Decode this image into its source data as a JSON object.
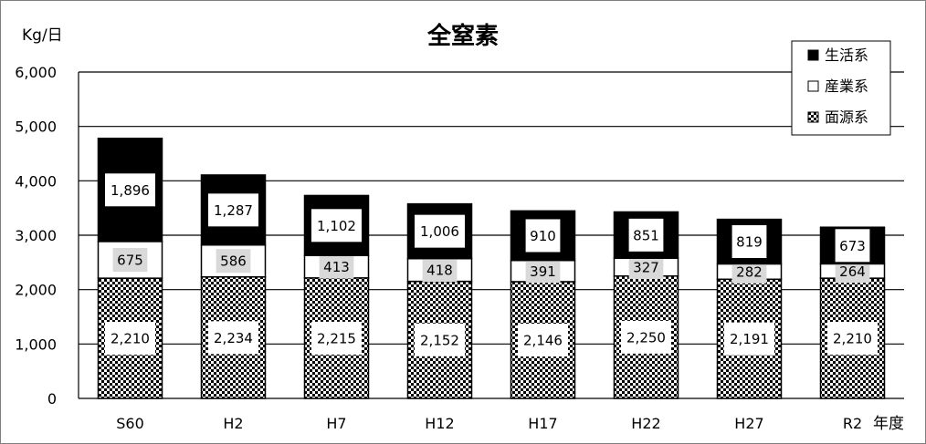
{
  "chart_data": {
    "type": "bar",
    "stacked": true,
    "title": "全窒素",
    "ylabel": "Kg/日",
    "xlabel": "年度",
    "categories": [
      "S60",
      "H2",
      "H7",
      "H12",
      "H17",
      "H22",
      "H27",
      "R2"
    ],
    "ylim": [
      0,
      6000
    ],
    "yticks": [
      "0",
      "1,000",
      "2,000",
      "3,000",
      "4,000",
      "5,000",
      "6,000"
    ],
    "grid": true,
    "legend_position": "top-right",
    "series": [
      {
        "name": "面源系",
        "fill": "checker",
        "color": "#000000",
        "values": [
          2210,
          2234,
          2215,
          2152,
          2146,
          2250,
          2191,
          2210
        ],
        "labels": [
          "2,210",
          "2,234",
          "2,215",
          "2,152",
          "2,146",
          "2,250",
          "2,191",
          "2,210"
        ]
      },
      {
        "name": "産業系",
        "fill": "solid",
        "color": "#ffffff",
        "values": [
          675,
          586,
          413,
          418,
          391,
          327,
          282,
          264
        ],
        "labels": [
          "675",
          "586",
          "413",
          "418",
          "391",
          "327",
          "282",
          "264"
        ]
      },
      {
        "name": "生活系",
        "fill": "solid",
        "color": "#000000",
        "values": [
          1896,
          1287,
          1102,
          1006,
          910,
          851,
          819,
          673
        ],
        "labels": [
          "1,896",
          "1,287",
          "1,102",
          "1,006",
          "910",
          "851",
          "819",
          "673"
        ]
      }
    ],
    "legend_order": [
      2,
      1,
      0
    ]
  }
}
